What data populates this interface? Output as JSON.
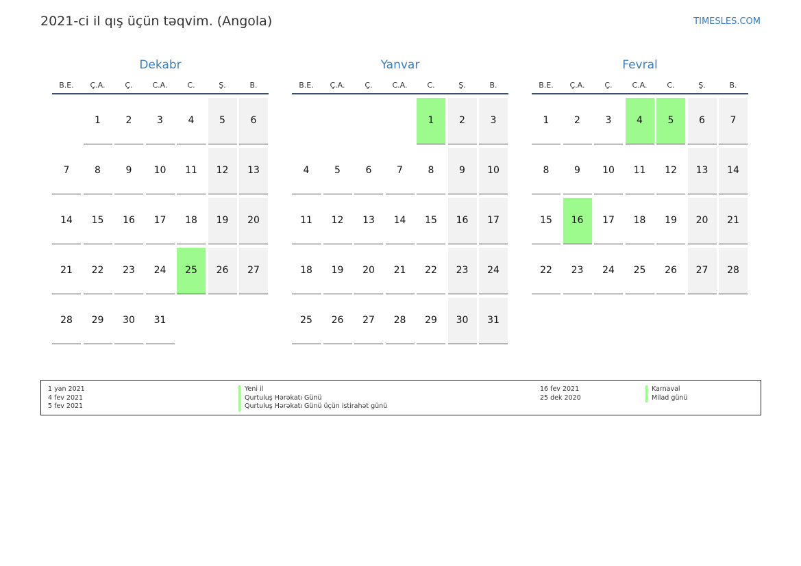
{
  "header": {
    "title": "2021-ci il qış üçün təqvim. (Angola)",
    "site": "TIMESLES.COM"
  },
  "weekdays": [
    "B.E.",
    "Ç.A.",
    "Ç.",
    "C.A.",
    "C.",
    "Ş.",
    "B."
  ],
  "colors": {
    "holiday": "#9dfb8d",
    "weekend": "#f2f2f2",
    "month_title": "#3a7fc0"
  },
  "months": [
    {
      "name": "Dekabr",
      "offset": 1,
      "days": 31,
      "holidays": [
        25
      ]
    },
    {
      "name": "Yanvar",
      "offset": 4,
      "days": 31,
      "holidays": [
        1
      ]
    },
    {
      "name": "Fevral",
      "offset": 0,
      "days": 28,
      "holidays": [
        4,
        5,
        16
      ]
    }
  ],
  "legend": {
    "left": [
      {
        "date": "1 yan 2021",
        "name": "Yeni il"
      },
      {
        "date": "4 fev 2021",
        "name": "Qurtuluş Hərəkatı Günü"
      },
      {
        "date": "5 fev 2021",
        "name": "Qurtuluş Hərəkatı Günü üçün istirahət günü"
      }
    ],
    "right": [
      {
        "date": "16 fev 2021",
        "name": "Karnaval"
      },
      {
        "date": "25 dek 2020",
        "name": "Milad günü"
      }
    ]
  }
}
